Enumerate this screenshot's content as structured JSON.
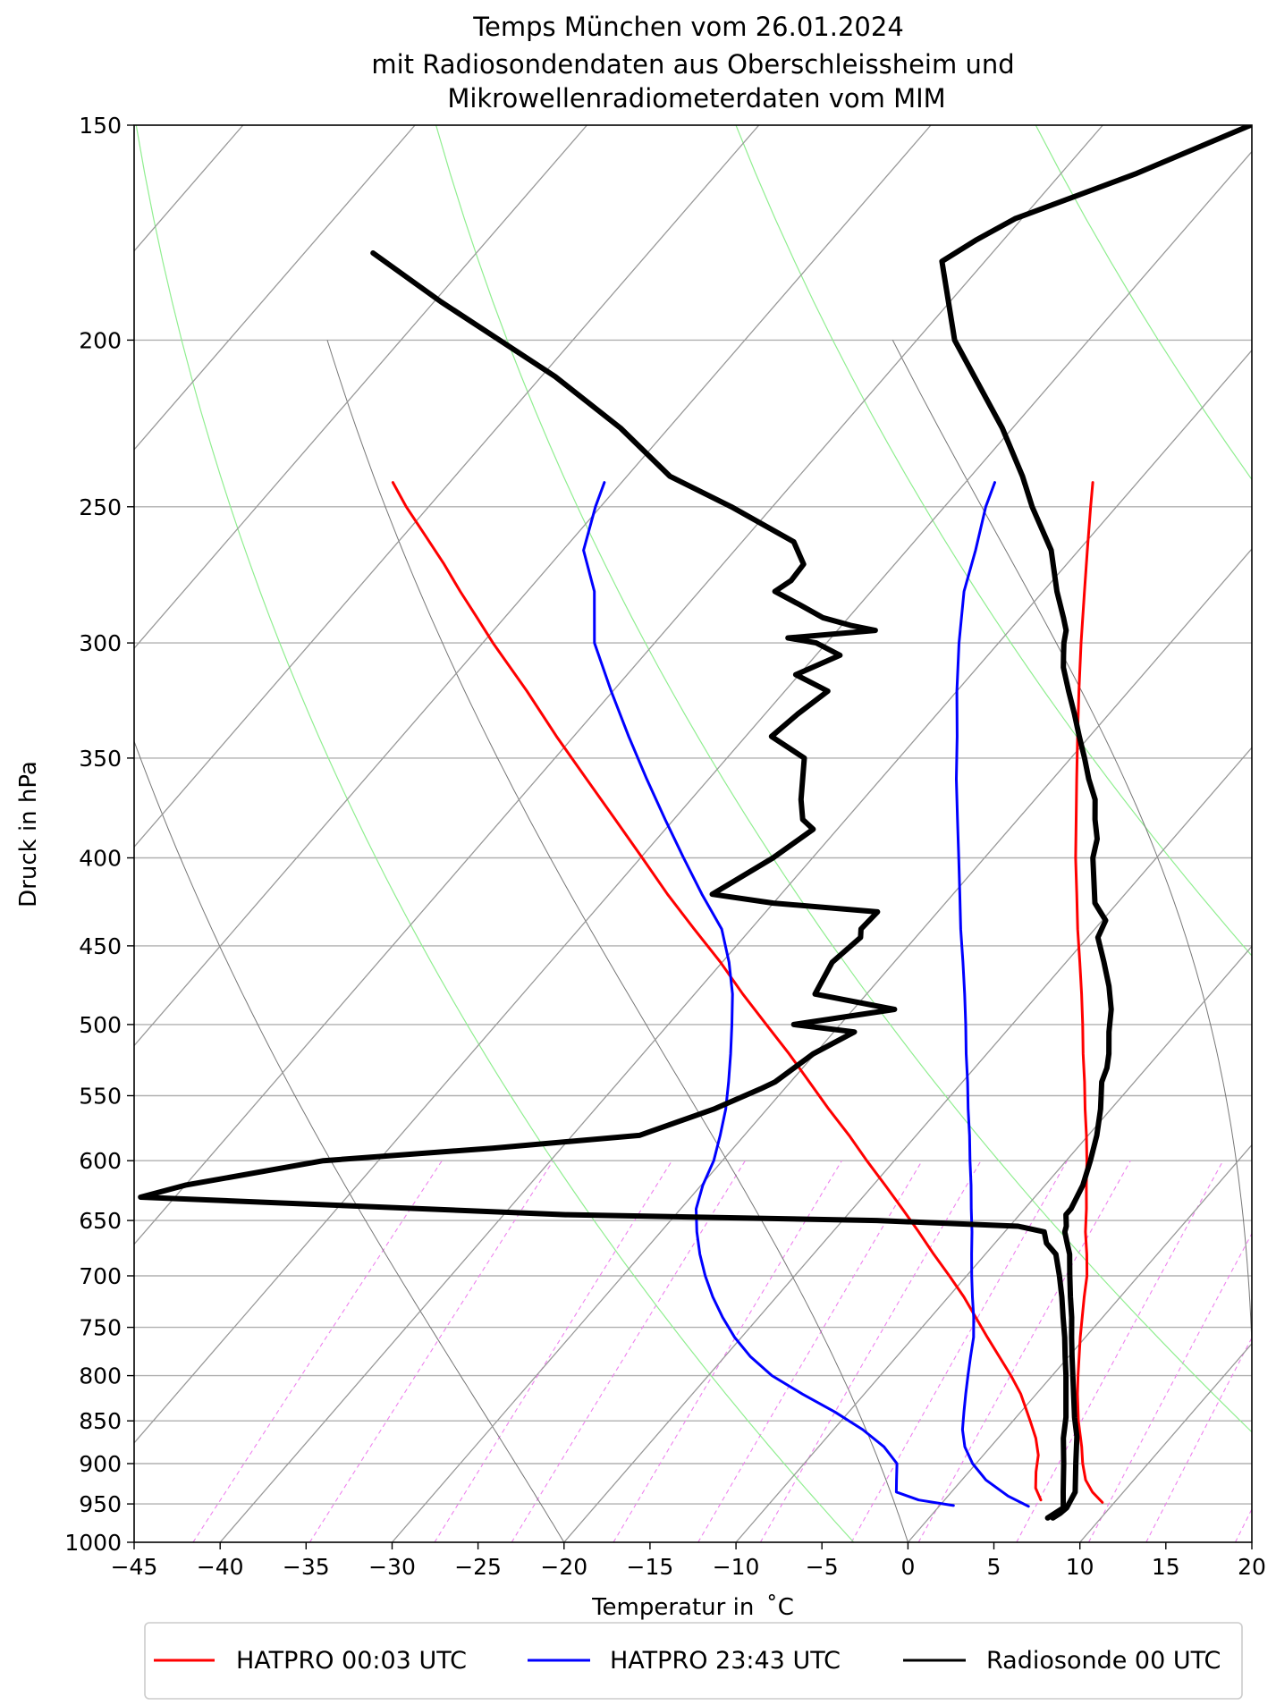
{
  "chart_data": {
    "type": "line",
    "title_lines": [
      "Temps München vom 26.01.2024",
      "mit Radiosondendaten aus Oberschleissheim und",
      "Mikrowellenradiometerdaten vom MIM"
    ],
    "xlabel": "Temperatur in  ˚C",
    "ylabel": "Druck in hPa",
    "xlim": [
      -45,
      20
    ],
    "ylim": [
      1000,
      150
    ],
    "y_scale": "log",
    "skew_degC_per_unit_log": 37.6,
    "x_ticks": [
      -45,
      -40,
      -35,
      -30,
      -25,
      -20,
      -15,
      -10,
      -5,
      0,
      5,
      10,
      15,
      20
    ],
    "y_ticks": [
      150,
      200,
      250,
      300,
      350,
      400,
      450,
      500,
      550,
      600,
      650,
      700,
      750,
      800,
      850,
      900,
      950,
      1000
    ],
    "grid": true,
    "legend_position": "bottom-outside",
    "background_lines": {
      "isotherms_degC": [
        -140,
        -130,
        -120,
        -110,
        -100,
        -90,
        -80,
        -70,
        -60,
        -50,
        -40,
        -30,
        -20,
        -10,
        0,
        10,
        20
      ],
      "dry_adiabats_theta_K": [
        270,
        300,
        330,
        360,
        390,
        420,
        450,
        480,
        510,
        540,
        570,
        600,
        630
      ],
      "moist_adiabats_degC_at_1000": [
        -20,
        0,
        20,
        40
      ],
      "mixing_ratio_lines_g_per_kg": [
        0.1,
        0.2,
        0.4,
        0.6,
        1,
        1.5,
        2,
        3,
        4,
        6,
        8,
        10,
        14,
        20,
        28,
        40
      ]
    },
    "colors": {
      "hatpro_0003": "#ff0000",
      "hatpro_2343": "#0000ff",
      "radiosonde": "#000000",
      "isotherm": "#999999",
      "dry_adiabat": "#90ee90",
      "moist_adiabat": "#777777",
      "mixing_ratio": "#ee82ee",
      "grid": "#b0b0b0"
    },
    "series": [
      {
        "name": "HATPRO 00:03 UTC",
        "key": "hatpro_0003",
        "traces": [
          {
            "p": [
              948,
              935,
              920,
              900,
              880,
              850,
              820,
              800,
              760,
              720,
              700,
              680,
              660,
              640,
              620,
              600,
              580,
              560,
              540,
              520,
              500,
              480,
              460,
              440,
              420,
              400,
              380,
              360,
              340,
              320,
              300,
              280,
              265,
              250,
              242
            ],
            "t": [
              9.3,
              8.2,
              7.2,
              6.2,
              5.3,
              3.8,
              2.4,
              1.5,
              -0.3,
              -2.1,
              -3.0,
              -4.1,
              -5.3,
              -6.4,
              -7.6,
              -8.8,
              -10.1,
              -11.5,
              -12.9,
              -14.4,
              -15.9,
              -17.5,
              -19.2,
              -21.0,
              -22.8,
              -24.7,
              -26.6,
              -28.6,
              -30.7,
              -32.9,
              -35.2,
              -37.6,
              -39.5,
              -41.5,
              -42.6
            ]
          },
          {
            "p": [
              945,
              930,
              910,
              890,
              870,
              850,
              820,
              800,
              760,
              720,
              700,
              680,
              660,
              640,
              620,
              600,
              580,
              560,
              540,
              520,
              500,
              480,
              460,
              440,
              420,
              400,
              380,
              360,
              340,
              320,
              300,
              290,
              280,
              270,
              260,
              250,
              242
            ],
            "t": [
              5.6,
              4.7,
              3.9,
              3.2,
              2.2,
              1.0,
              -0.9,
              -2.4,
              -5.7,
              -9.1,
              -11.0,
              -13.0,
              -15.0,
              -17.1,
              -19.3,
              -21.6,
              -23.9,
              -26.4,
              -28.9,
              -31.5,
              -34.3,
              -37.2,
              -40.1,
              -43.3,
              -46.6,
              -49.9,
              -53.4,
              -57.1,
              -61.0,
              -65.0,
              -69.4,
              -71.6,
              -73.9,
              -76.2,
              -78.7,
              -81.3,
              -83.3
            ]
          }
        ]
      },
      {
        "name": "HATPRO 23:43 UTC",
        "key": "hatpro_2343",
        "traces": [
          {
            "p": [
              953,
              940,
              920,
              900,
              880,
              860,
              840,
              820,
              800,
              780,
              760,
              740,
              720,
              700,
              680,
              660,
              640,
              620,
              600,
              580,
              560,
              540,
              520,
              500,
              480,
              460,
              440,
              420,
              400,
              380,
              360,
              340,
              320,
              300,
              280,
              265,
              250,
              242
            ],
            "t": [
              5.2,
              3.5,
              1.4,
              -0.2,
              -1.5,
              -2.5,
              -3.3,
              -4.1,
              -4.9,
              -5.7,
              -6.5,
              -7.5,
              -8.6,
              -9.7,
              -10.8,
              -11.9,
              -13.1,
              -14.3,
              -15.6,
              -16.9,
              -18.3,
              -19.7,
              -21.2,
              -22.7,
              -24.3,
              -26.0,
              -27.8,
              -29.6,
              -31.5,
              -33.5,
              -35.6,
              -37.7,
              -40.0,
              -42.3,
              -44.6,
              -46.0,
              -47.6,
              -48.3
            ]
          },
          {
            "p": [
              952,
              945,
              935,
              920,
              900,
              880,
              860,
              840,
              820,
              800,
              780,
              760,
              740,
              720,
              700,
              680,
              660,
              640,
              620,
              600,
              580,
              560,
              540,
              520,
              500,
              480,
              460,
              440,
              420,
              400,
              380,
              360,
              340,
              320,
              300,
              280,
              265,
              250,
              242
            ],
            "t": [
              0.8,
              -1.5,
              -3.2,
              -3.8,
              -4.6,
              -6.2,
              -8.3,
              -10.8,
              -13.6,
              -16.3,
              -18.5,
              -20.4,
              -22.1,
              -23.7,
              -25.2,
              -26.6,
              -27.9,
              -29.1,
              -29.9,
              -30.5,
              -31.4,
              -32.4,
              -33.6,
              -34.9,
              -36.3,
              -37.8,
              -39.6,
              -41.7,
              -44.6,
              -47.5,
              -50.5,
              -53.6,
              -56.8,
              -60.1,
              -63.5,
              -66.1,
              -68.8,
              -70.3,
              -71.0
            ]
          }
        ]
      },
      {
        "name": "Radiosonde 00 UTC",
        "key": "radiosonde",
        "traces": [
          {
            "p": [
              968,
              962,
              955,
              935,
              900,
              868,
              846,
              800,
              780,
              760,
              740,
              720,
              700,
              680,
              670,
              660,
              655,
              645,
              640,
              620,
              600,
              580,
              560,
              540,
              530,
              520,
              505,
              490,
              475,
              460,
              445,
              435,
              425,
              400,
              390,
              380,
              370,
              360,
              350,
              340,
              330,
              320,
              310,
              305,
              300,
              295,
              290,
              280,
              265,
              250,
              240,
              225,
              200,
              180,
              175,
              170,
              160,
              150
            ],
            "t": [
              7.2,
              7.4,
              7.5,
              7.2,
              5.8,
              4.5,
              3.4,
              1.2,
              0.2,
              -0.8,
              -1.8,
              -2.9,
              -4.0,
              -5.1,
              -5.8,
              -6.5,
              -6.7,
              -7.3,
              -7.3,
              -7.8,
              -8.6,
              -9.5,
              -10.6,
              -11.9,
              -12.3,
              -12.9,
              -14.0,
              -15.0,
              -16.3,
              -17.8,
              -19.4,
              -19.8,
              -21.3,
              -23.7,
              -24.4,
              -25.5,
              -26.5,
              -27.9,
              -29.2,
              -30.6,
              -32.0,
              -33.5,
              -35.0,
              -35.6,
              -36.2,
              -36.7,
              -37.5,
              -39.2,
              -41.6,
              -44.9,
              -47.0,
              -50.6,
              -57.8,
              -62.5,
              -61.6,
              -60.4,
              -55.6,
              -51.4
            ]
          },
          {
            "p": [
              968,
              955,
              935,
              900,
              870,
              846,
              800,
              780,
              760,
              740,
              720,
              700,
              680,
              670,
              660,
              655,
              650,
              645,
              630,
              620,
              600,
              590,
              580,
              560,
              545,
              540,
              520,
              505,
              500,
              490,
              480,
              460,
              445,
              440,
              430,
              425,
              420,
              400,
              385,
              380,
              370,
              350,
              340,
              330,
              320,
              313,
              305,
              300,
              298,
              295,
              293,
              290,
              285,
              280,
              276,
              270,
              262,
              250,
              240,
              225,
              210,
              190,
              178
            ],
            "t": [
              6.9,
              7.3,
              6.5,
              5.1,
              3.8,
              2.9,
              0.8,
              -0.2,
              -1.2,
              -2.3,
              -3.4,
              -4.6,
              -5.9,
              -7.0,
              -7.7,
              -9.5,
              -18.0,
              -36.4,
              -62.0,
              -60.0,
              -53.2,
              -44.0,
              -36.1,
              -33.1,
              -31.4,
              -30.9,
              -30.1,
              -28.8,
              -32.7,
              -27.6,
              -33.0,
              -33.6,
              -33.2,
              -33.6,
              -33.5,
              -40.0,
              -44.0,
              -42.3,
              -41.4,
              -42.5,
              -43.6,
              -45.5,
              -48.5,
              -48.1,
              -47.5,
              -50.2,
              -48.6,
              -50.6,
              -52.5,
              -47.8,
              -49.5,
              -51.5,
              -53.5,
              -55.6,
              -55.2,
              -55.3,
              -57.0,
              -62.4,
              -67.5,
              -72.8,
              -79.2,
              -89.6,
              -96.0
            ]
          }
        ]
      }
    ]
  }
}
